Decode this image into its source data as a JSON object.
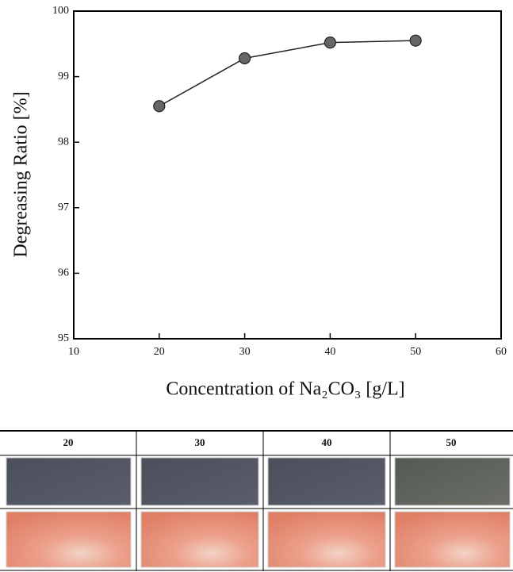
{
  "chart_data": {
    "type": "line",
    "xlabel": "Concentration of Na₂CO₃ [g/L]",
    "ylabel": "Degreasing Ratio [%]",
    "x": [
      20,
      30,
      40,
      50
    ],
    "values": [
      98.55,
      99.28,
      99.52,
      99.55
    ],
    "color": "#666666",
    "xlim": [
      10,
      60
    ],
    "xticks": [
      10,
      20,
      30,
      40,
      50,
      60
    ],
    "ylim": [
      95,
      100
    ],
    "yticks": [
      95,
      96,
      97,
      98,
      99,
      100
    ]
  },
  "photo_table": {
    "headers": [
      "20",
      "30",
      "40",
      "50"
    ]
  }
}
